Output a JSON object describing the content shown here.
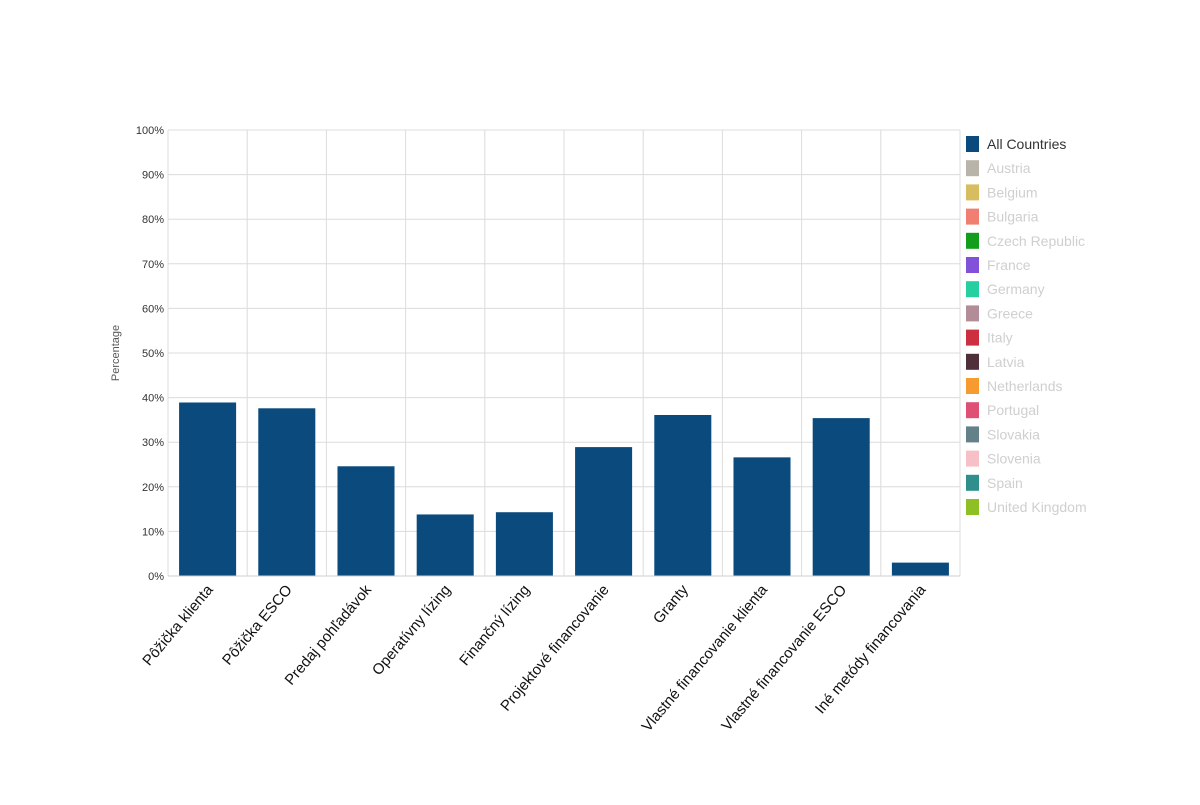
{
  "chart_data": {
    "type": "bar",
    "ylabel": "Percentage",
    "ylim": [
      0,
      100
    ],
    "y_ticks": [
      "0%",
      "10%",
      "20%",
      "30%",
      "40%",
      "50%",
      "60%",
      "70%",
      "80%",
      "90%",
      "100%"
    ],
    "grid": true,
    "legend_position": "right",
    "categories": [
      "Pôžička klienta",
      "Pôžička ESCO",
      "Predaj pohľadávok",
      "Operatívny lízing",
      "Finančný lízing",
      "Projektové financovanie",
      "Granty",
      "Vlastné financovanie klienta",
      "Vlastné financovanie ESCO",
      "Iné metódy financovania"
    ],
    "series": [
      {
        "name": "All Countries",
        "values": [
          38.9,
          37.6,
          24.6,
          13.8,
          14.3,
          28.9,
          36.1,
          26.6,
          35.4,
          3.0
        ]
      }
    ],
    "legend": [
      {
        "name": "All Countries",
        "color": "#0a4a7c",
        "active": true
      },
      {
        "name": "Austria",
        "color": "#b9b4a9",
        "active": false
      },
      {
        "name": "Belgium",
        "color": "#d8bd60",
        "active": false
      },
      {
        "name": "Bulgaria",
        "color": "#f07f72",
        "active": false
      },
      {
        "name": "Czech Republic",
        "color": "#129e1c",
        "active": false
      },
      {
        "name": "France",
        "color": "#8152d9",
        "active": false
      },
      {
        "name": "Germany",
        "color": "#25cfa0",
        "active": false
      },
      {
        "name": "Greece",
        "color": "#b28d98",
        "active": false
      },
      {
        "name": "Italy",
        "color": "#cc3040",
        "active": false
      },
      {
        "name": "Latvia",
        "color": "#4e2f3a",
        "active": false
      },
      {
        "name": "Netherlands",
        "color": "#f79a30",
        "active": false
      },
      {
        "name": "Portugal",
        "color": "#e05075",
        "active": false
      },
      {
        "name": "Slovakia",
        "color": "#64818a",
        "active": false
      },
      {
        "name": "Slovenia",
        "color": "#f6c0c6",
        "active": false
      },
      {
        "name": "Spain",
        "color": "#2f8f8c",
        "active": false
      },
      {
        "name": "United Kingdom",
        "color": "#8ebf25",
        "active": false
      }
    ]
  }
}
